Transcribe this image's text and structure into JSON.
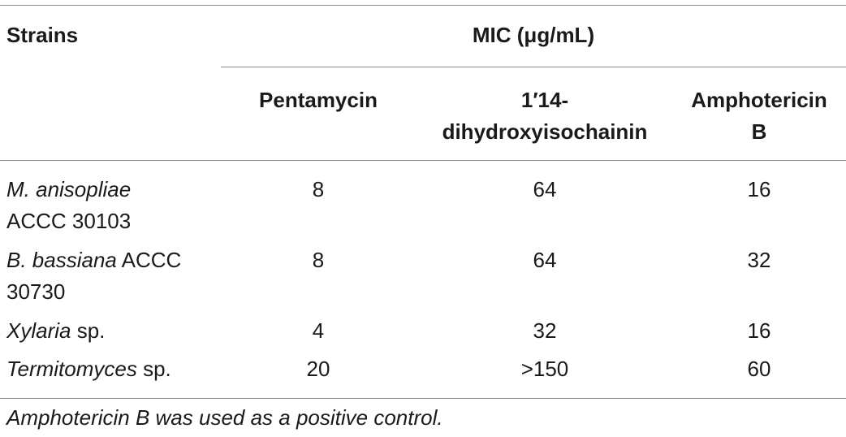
{
  "table": {
    "header": {
      "strains": "Strains",
      "mic_group": "MIC (μg/mL)",
      "columns": [
        {
          "line1": "Pentamycin",
          "line2": ""
        },
        {
          "line1": "1′14-",
          "line2": "dihydroxyisochainin"
        },
        {
          "line1": "Amphotericin",
          "line2": "B"
        }
      ]
    },
    "rows": [
      {
        "name_italic": "M. anisopliae",
        "name_rest": "",
        "name_line2": "ACCC 30103",
        "values": [
          "8",
          "64",
          "16"
        ]
      },
      {
        "name_italic": "B. bassiana",
        "name_rest": " ACCC",
        "name_line2": "30730",
        "values": [
          "8",
          "64",
          "32"
        ]
      },
      {
        "name_italic": "Xylaria",
        "name_rest": " sp.",
        "name_line2": "",
        "values": [
          "4",
          "32",
          "16"
        ]
      },
      {
        "name_italic": "Termitomyces",
        "name_rest": " sp.",
        "name_line2": "",
        "values": [
          "20",
          ">150",
          "60"
        ]
      }
    ],
    "footnote": "Amphotericin B was used as a positive control."
  }
}
